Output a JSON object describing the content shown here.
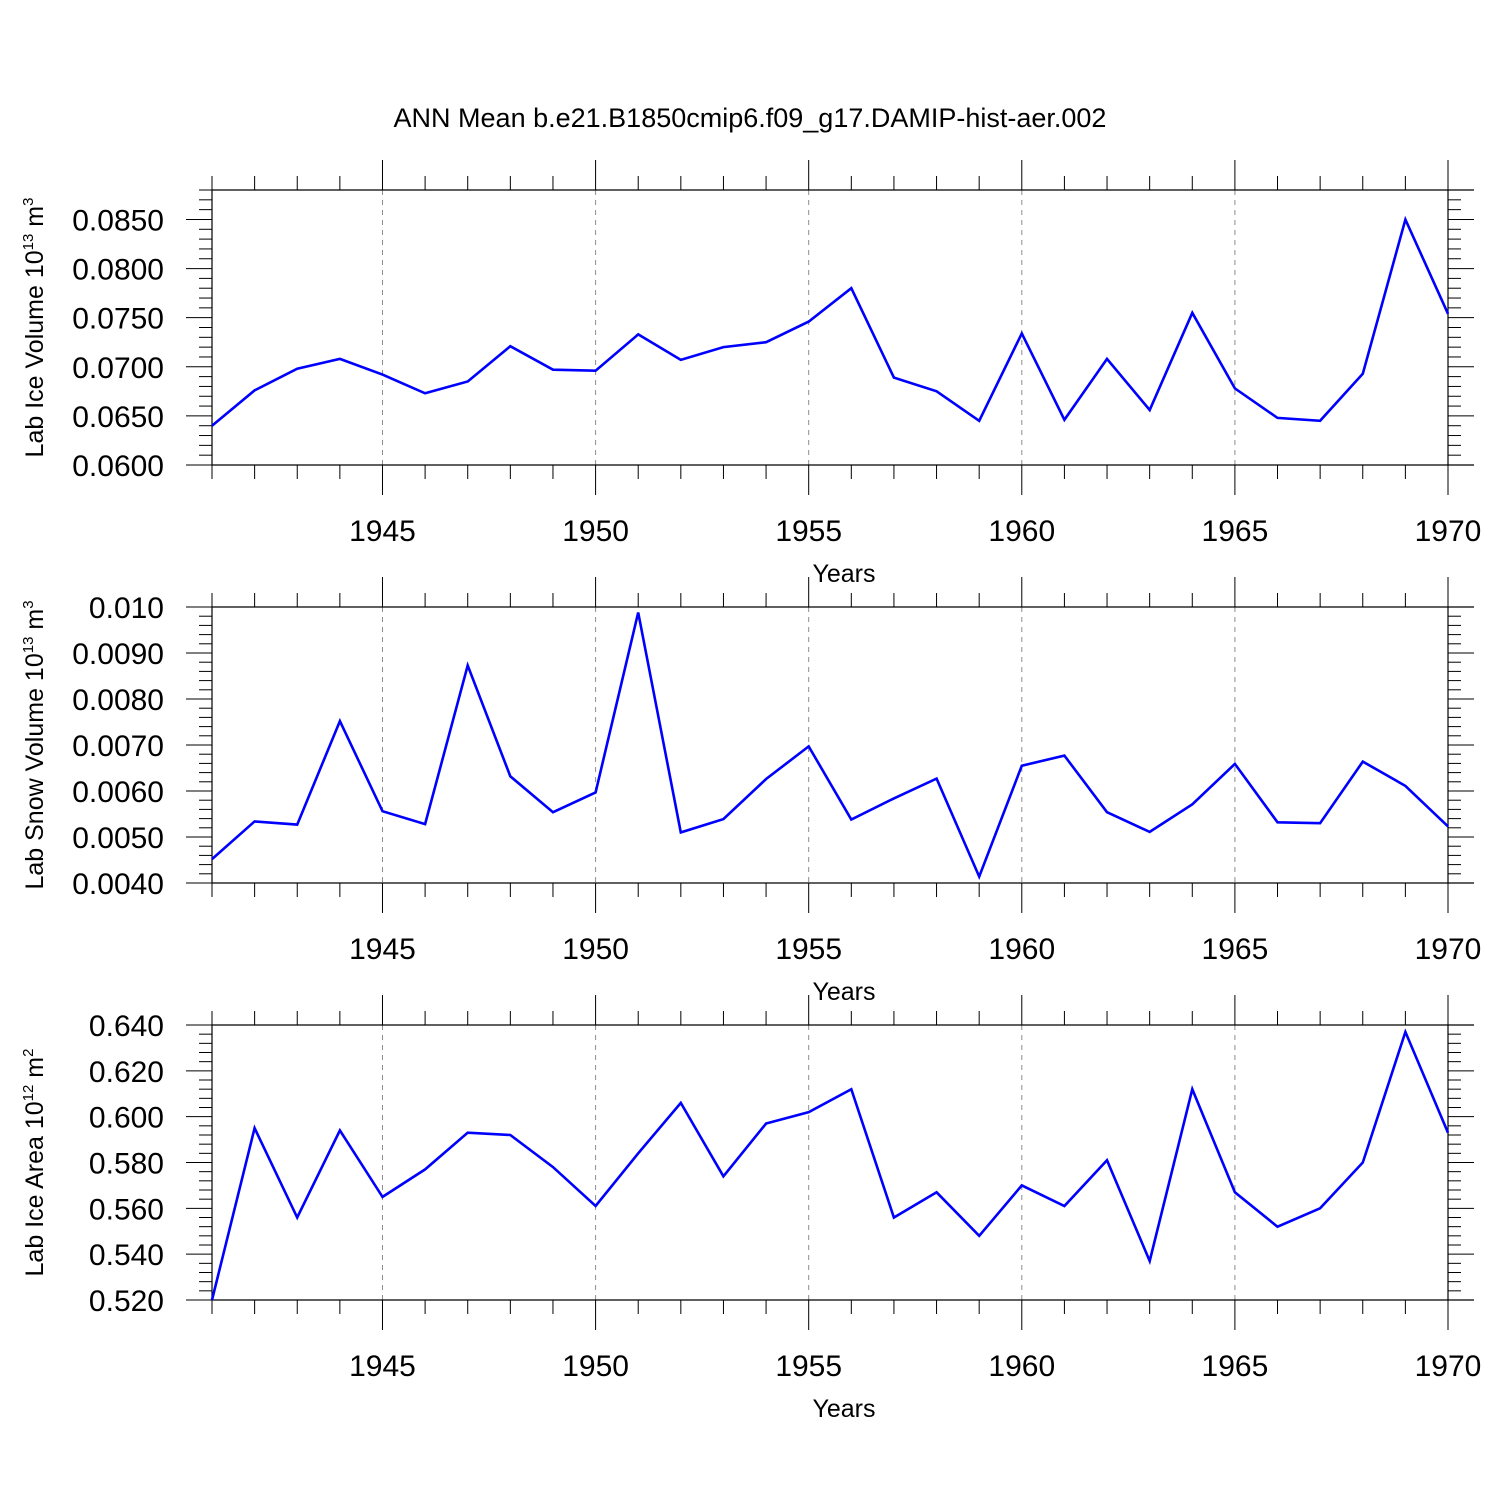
{
  "title": "ANN Mean b.e21.B1850cmip6.f09_g17.DAMIP-hist-aer.002",
  "colors": {
    "line": "#0000ff",
    "grid": "#8c8c8c",
    "axes": "#000000"
  },
  "chart_data": [
    {
      "type": "line",
      "xlabel": "Years",
      "ylabel": "Lab Ice Volume 10",
      "ylabel_exp": "13",
      "ylabel_unit": " m",
      "ylabel_unit_exp": "3",
      "xlim": [
        1941,
        1970
      ],
      "ylim": [
        0.06,
        0.088
      ],
      "y_ticks": [
        0.06,
        0.065,
        0.07,
        0.075,
        0.08,
        0.085
      ],
      "y_tick_labels": [
        "0.0600",
        "0.0650",
        "0.0700",
        "0.0750",
        "0.0800",
        "0.0850"
      ],
      "y_minor_step": 0.001,
      "x_ticks": [
        1945,
        1950,
        1955,
        1960,
        1965,
        1970
      ],
      "x_tick_labels": [
        "1945",
        "1950",
        "1955",
        "1960",
        "1965",
        "1970"
      ],
      "grid": "vertical-dashed",
      "x": [
        1941,
        1942,
        1943,
        1944,
        1945,
        1946,
        1947,
        1948,
        1949,
        1950,
        1951,
        1952,
        1953,
        1954,
        1955,
        1956,
        1957,
        1958,
        1959,
        1960,
        1961,
        1962,
        1963,
        1964,
        1965,
        1966,
        1967,
        1968,
        1969,
        1970
      ],
      "values": [
        0.064,
        0.0676,
        0.0698,
        0.0708,
        0.0692,
        0.0673,
        0.0685,
        0.0721,
        0.0697,
        0.0696,
        0.0733,
        0.0707,
        0.072,
        0.0725,
        0.0746,
        0.078,
        0.0689,
        0.0675,
        0.0645,
        0.0734,
        0.0646,
        0.0708,
        0.0656,
        0.0755,
        0.0678,
        0.0648,
        0.0645,
        0.0693,
        0.085,
        0.0754
      ]
    },
    {
      "type": "line",
      "xlabel": "Years",
      "ylabel": "Lab Snow Volume 10",
      "ylabel_exp": "13",
      "ylabel_unit": " m",
      "ylabel_unit_exp": "3",
      "xlim": [
        1941,
        1970
      ],
      "ylim": [
        0.004,
        0.01
      ],
      "y_ticks": [
        0.004,
        0.005,
        0.006,
        0.007,
        0.008,
        0.009,
        0.01
      ],
      "y_tick_labels": [
        "0.0040",
        "0.0050",
        "0.0060",
        "0.0070",
        "0.0080",
        "0.0090",
        "0.010"
      ],
      "y_minor_step": 0.0002,
      "x_ticks": [
        1945,
        1950,
        1955,
        1960,
        1965,
        1970
      ],
      "x_tick_labels": [
        "1945",
        "1950",
        "1955",
        "1960",
        "1965",
        "1970"
      ],
      "grid": "vertical-dashed",
      "x": [
        1941,
        1942,
        1943,
        1944,
        1945,
        1946,
        1947,
        1948,
        1949,
        1950,
        1951,
        1952,
        1953,
        1954,
        1955,
        1956,
        1957,
        1958,
        1959,
        1960,
        1961,
        1962,
        1963,
        1964,
        1965,
        1966,
        1967,
        1968,
        1969,
        1970
      ],
      "values": [
        0.00452,
        0.00534,
        0.00527,
        0.00752,
        0.00556,
        0.00528,
        0.00873,
        0.00632,
        0.00554,
        0.00597,
        0.00988,
        0.0051,
        0.00539,
        0.00626,
        0.00697,
        0.00538,
        0.00584,
        0.00627,
        0.00414,
        0.00655,
        0.00677,
        0.00554,
        0.00511,
        0.00571,
        0.00659,
        0.00532,
        0.0053,
        0.00664,
        0.00611,
        0.00523
      ]
    },
    {
      "type": "line",
      "xlabel": "Years",
      "ylabel": "Lab Ice Area 10",
      "ylabel_exp": "12",
      "ylabel_unit": " m",
      "ylabel_unit_exp": "2",
      "xlim": [
        1941,
        1970
      ],
      "ylim": [
        0.52,
        0.64
      ],
      "y_ticks": [
        0.52,
        0.54,
        0.56,
        0.58,
        0.6,
        0.62,
        0.64
      ],
      "y_tick_labels": [
        "0.520",
        "0.540",
        "0.560",
        "0.580",
        "0.600",
        "0.620",
        "0.640"
      ],
      "y_minor_step": 0.004,
      "x_ticks": [
        1945,
        1950,
        1955,
        1960,
        1965,
        1970
      ],
      "x_tick_labels": [
        "1945",
        "1950",
        "1955",
        "1960",
        "1965",
        "1970"
      ],
      "grid": "vertical-dashed",
      "x": [
        1941,
        1942,
        1943,
        1944,
        1945,
        1946,
        1947,
        1948,
        1949,
        1950,
        1951,
        1952,
        1953,
        1954,
        1955,
        1956,
        1957,
        1958,
        1959,
        1960,
        1961,
        1962,
        1963,
        1964,
        1965,
        1966,
        1967,
        1968,
        1969,
        1970
      ],
      "values": [
        0.52,
        0.595,
        0.556,
        0.594,
        0.565,
        0.577,
        0.593,
        0.592,
        0.578,
        0.561,
        0.584,
        0.606,
        0.574,
        0.597,
        0.602,
        0.612,
        0.556,
        0.567,
        0.548,
        0.57,
        0.561,
        0.581,
        0.537,
        0.612,
        0.567,
        0.552,
        0.56,
        0.58,
        0.637,
        0.593
      ]
    }
  ]
}
